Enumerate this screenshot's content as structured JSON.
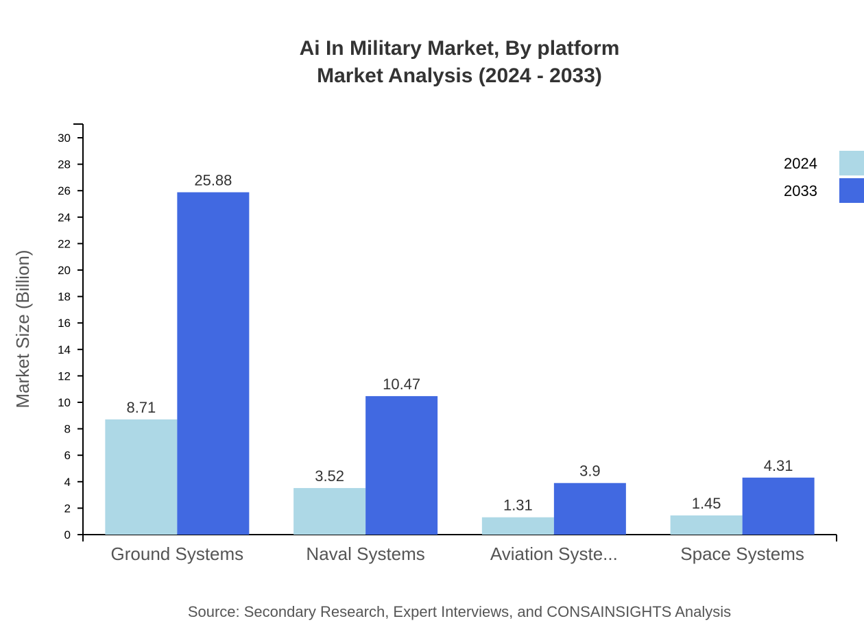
{
  "chart_data": {
    "type": "bar",
    "title": "Ai In Military Market, By platform",
    "subtitle": "Market Analysis (2024 - 2033)",
    "ylabel": "Market Size (Billion)",
    "xlabel": "",
    "ylim": [
      0,
      31
    ],
    "yticks": [
      0,
      2,
      4,
      6,
      8,
      10,
      12,
      14,
      16,
      18,
      20,
      22,
      24,
      26,
      28,
      30
    ],
    "categories": [
      "Ground Systems",
      "Naval Systems",
      "Aviation Syste...",
      "Space Systems"
    ],
    "series": [
      {
        "name": "2024",
        "color": "#add8e6",
        "values": [
          8.71,
          3.52,
          1.31,
          1.45
        ],
        "labels": [
          "8.71",
          "3.52",
          "1.31",
          "1.45"
        ]
      },
      {
        "name": "2033",
        "color": "#4169e1",
        "values": [
          25.88,
          10.47,
          3.9,
          4.31
        ],
        "labels": [
          "25.88",
          "10.47",
          "3.9",
          "4.31"
        ]
      }
    ],
    "legend": "top-right",
    "grid": false,
    "source": "Source: Secondary Research, Expert Interviews, and CONSAINSIGHTS Analysis"
  }
}
